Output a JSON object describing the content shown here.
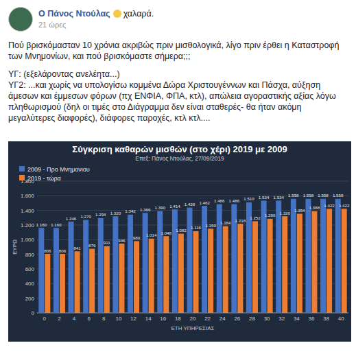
{
  "post": {
    "author": "Ο Πάνος Ντούλας",
    "status": "χαλαρά.",
    "time": "21 ώρες",
    "paragraphs": [
      "Πού βρισκόμασταν 10 χρόνια ακριβώς πριν μισθολογικά, λίγο πριν έρθει η Καταστροφή των Μνημονίων, και πού βρισκόμαστε σήμερα;;;",
      "ΥΓ: (εξελάροντας ανελέητα...)",
      "ΥΓ2: ...και χωρίς να υπολογίσω κομμένα Δώρα Χριστουγέννων και Πάσχα, αύξηση άμεσων και έμμεσων φόρων (πχ ΕΝΦΙΑ, ΦΠΑ, κτλ), απώλεια αγοραστικής αξίας λόγω πληθωρισμού (δηλ οι τιμές στο Διάγραμμα δεν είναι σταθερές- θα ήταν ακόμη μεγαλύτερες διαφορές), διάφορες παροχές, κτλ κτλ...."
    ]
  },
  "chart_data": {
    "type": "bar",
    "title": "Σύγκριση καθαρών μισθών (στο χέρι) 2019 με 2009",
    "subtitle": "Επεξ: Πάνος Ντούλας, 27/09/2019",
    "x_label": "ΕΤΗ ΥΠΗΡΕΣΙΑΣ",
    "y_label": "ΕΥΡΩ",
    "categories": [
      0,
      2,
      4,
      6,
      8,
      10,
      12,
      14,
      16,
      18,
      20,
      22,
      24,
      26,
      28,
      30,
      32,
      34,
      36,
      38,
      40
    ],
    "series": [
      {
        "name": "2009 - Προ Μνημονιου",
        "color": "#4472c4",
        "values": [
          1160,
          1160,
          1246,
          1270,
          1294,
          1320,
          1342,
          1366,
          1390,
          1414,
          1438,
          1462,
          1486,
          1486,
          1510,
          1534,
          1534,
          1558,
          1558,
          1558,
          1558
        ],
        "value_labels": [
          "1.160",
          "1.160",
          "1.246",
          "1.270",
          "1.294",
          "1.320",
          "1.342",
          "1.366",
          "1.390",
          "1.414",
          "1.438",
          "1.462",
          "1.486",
          "1.486",
          "1.510",
          "1.534",
          "1.534",
          "1.558",
          "1.558",
          "1.558",
          "1.558"
        ]
      },
      {
        "name": "2019 - τώρα",
        "color": "#ed7d31",
        "values": [
          806,
          806,
          841,
          876,
          911,
          946,
          980,
          1014,
          1048,
          1082,
          1116,
          1150,
          1184,
          1218,
          1252,
          1286,
          1320,
          1354,
          1388,
          1422,
          1422
        ],
        "value_labels": [
          "806",
          "806",
          "841",
          "876",
          "911",
          "946",
          "980",
          "1.014",
          "1.048",
          "1.082",
          "1.116",
          "1.150",
          "1.184",
          "1.218",
          "1.252",
          "1.286",
          "1.320",
          "1.354",
          "1.388",
          "1.422",
          "1.422"
        ]
      }
    ],
    "ylim": [
      0,
      1800
    ],
    "yticks": [
      0,
      200,
      400,
      600,
      800,
      {
        "value": 1000,
        "label": "1.000"
      },
      {
        "value": 1200,
        "label": "1.200"
      },
      {
        "value": 1400,
        "label": "1.400"
      },
      {
        "value": 1600,
        "label": "1.600"
      },
      {
        "value": 1800,
        "label": "1.800"
      }
    ],
    "grid": true,
    "legend": "upper left",
    "data_labels": true
  }
}
